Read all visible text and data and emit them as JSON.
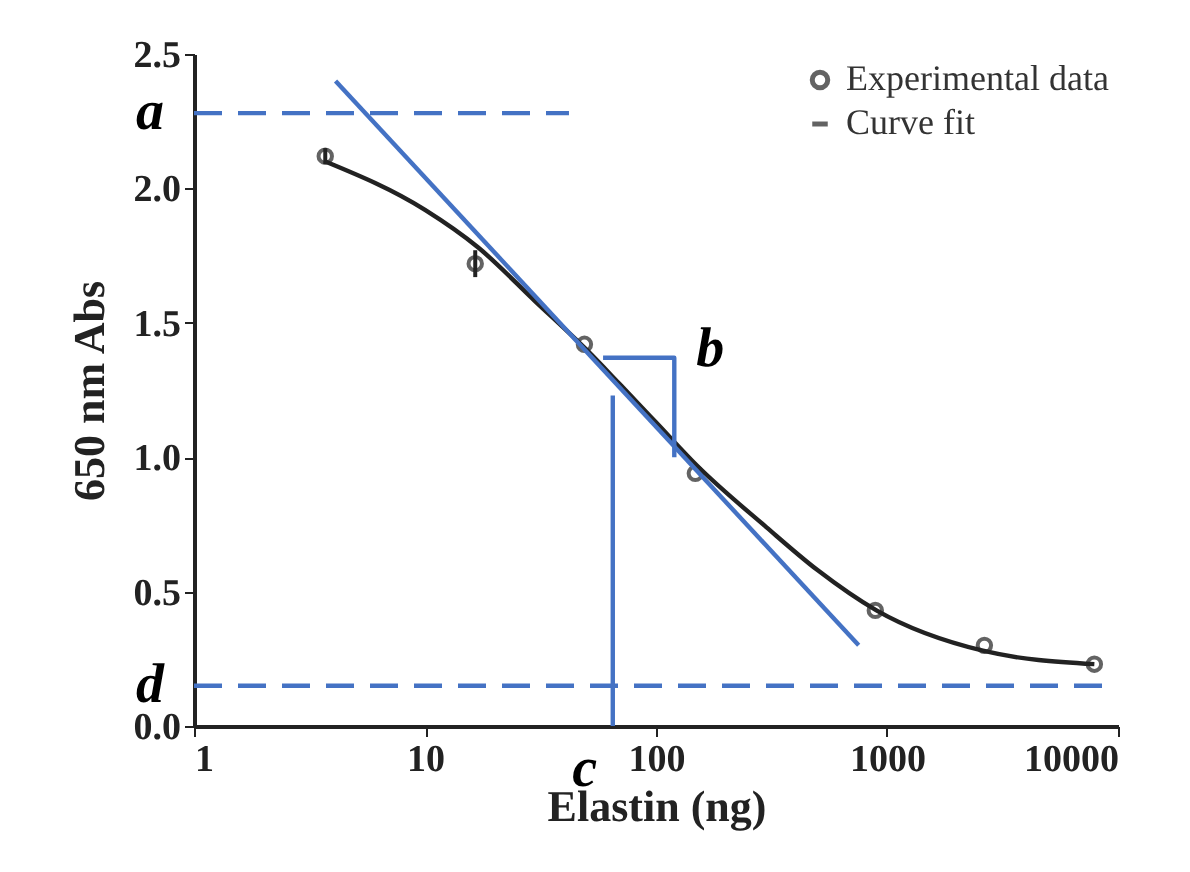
{
  "chart_data": {
    "type": "scatter",
    "xlabel": "Elastin (ng)",
    "ylabel": "650 nm Abs",
    "log": "x",
    "xlim": [
      1,
      10000
    ],
    "xticks": [
      1,
      10,
      100,
      1000,
      10000
    ],
    "ylim": [
      0,
      2.5
    ],
    "yticks": [
      {
        "value": 0,
        "label": "0.0"
      },
      {
        "value": 0.5,
        "label": "0.5"
      },
      {
        "value": 1,
        "label": "1.0"
      },
      {
        "value": 1.5,
        "label": "1.5"
      },
      {
        "value": 2,
        "label": "2.0"
      },
      {
        "value": 2.5,
        "label": "2.5"
      }
    ],
    "grid": false,
    "legend": "top right",
    "series": [
      {
        "name": "Experimental data",
        "marker": "circle",
        "color": "#222222",
        "x": [
          3.7,
          16.5,
          49,
          148,
          890,
          2640,
          7900
        ],
        "values": [
          2.12,
          1.72,
          1.42,
          0.94,
          0.43,
          0.3,
          0.23
        ],
        "errors": [
          0.03,
          0.05,
          null,
          null,
          null,
          null,
          null
        ]
      },
      {
        "name": "Curve fit",
        "type": "line",
        "line_style": "solid",
        "color": "#222222",
        "x": [
          3.7,
          10,
          17,
          30,
          50,
          70,
          100,
          150,
          300,
          500,
          900,
          2600,
          7900
        ],
        "values": [
          2.1,
          1.92,
          1.78,
          1.58,
          1.4,
          1.27,
          1.13,
          0.97,
          0.74,
          0.58,
          0.43,
          0.28,
          0.23
        ]
      },
      {
        "type": "line",
        "line_style": "solid",
        "color": "#4472c4",
        "x": [
          4.1,
          754
        ],
        "values": [
          2.4,
          0.3
        ]
      },
      {
        "type": "line",
        "line_style": "dashed",
        "color": "#4472c4",
        "x": [
          1,
          42
        ],
        "values": [
          2.28,
          2.28
        ]
      },
      {
        "type": "line",
        "line_style": "dashed",
        "color": "#4472c4",
        "x": [
          1,
          10000
        ],
        "values": [
          0.15,
          0.15
        ]
      },
      {
        "type": "line",
        "line_style": "solid",
        "color": "#4472c4",
        "x": [
          65,
          65
        ],
        "values": [
          0,
          1.23
        ]
      },
      {
        "type": "line",
        "line_style": "solid",
        "color": "#4472c4",
        "x": [
          59,
          120,
          120
        ],
        "values": [
          1.37,
          1.37,
          1.0
        ]
      }
    ],
    "annotations": [
      {
        "text": "a",
        "x": 1,
        "y": 2.28
      },
      {
        "text": "b",
        "x": 130,
        "y": 1.37
      },
      {
        "text": "c",
        "x": 65,
        "y": 0
      },
      {
        "text": "d",
        "x": 1,
        "y": 0.15
      }
    ]
  }
}
